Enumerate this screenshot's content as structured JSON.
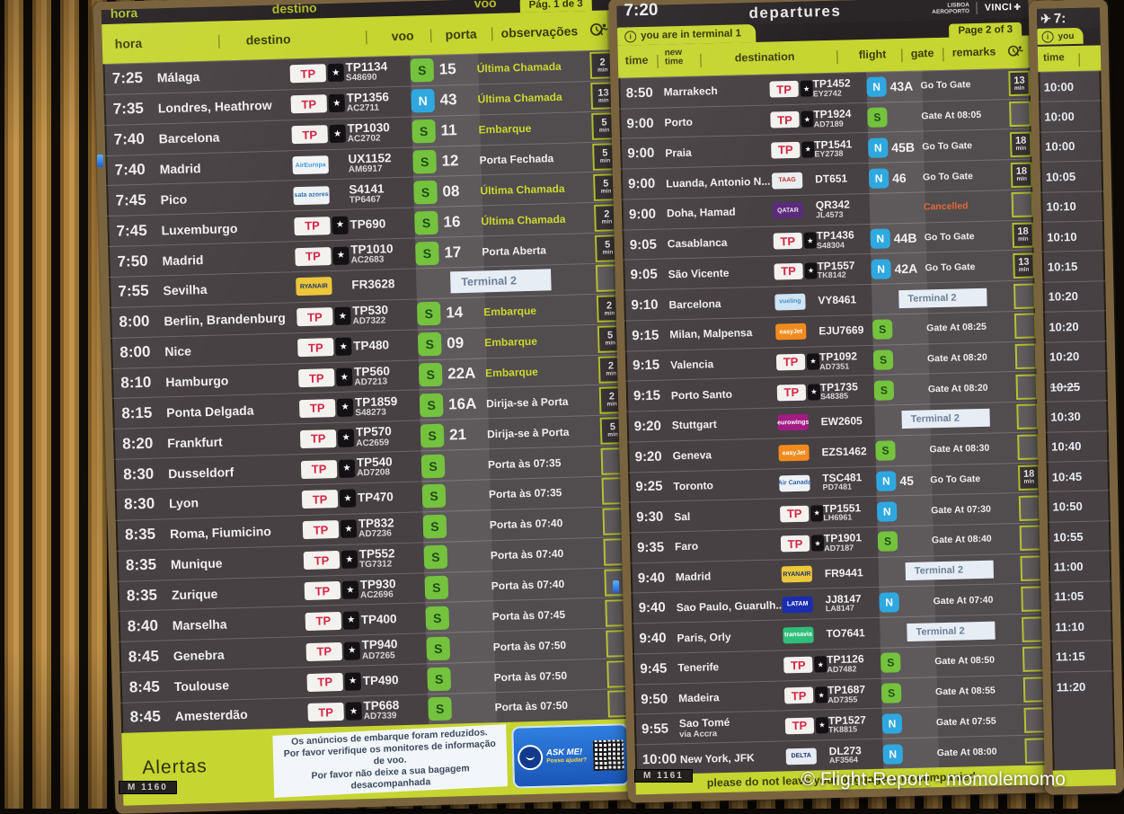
{
  "min_label": "min",
  "watermark": "© Flight-Report - momolemomo",
  "logos": {
    "tap": {
      "text": "TP",
      "bg": "#f4f2ee",
      "fg": "#d42645",
      "star": true,
      "big": true
    },
    "aireuropa": {
      "text": "AirEuropa",
      "bg": "#f2f4f6",
      "fg": "#3a9bd8"
    },
    "sata": {
      "text": "sata azores",
      "bg": "#eef2f5",
      "fg": "#2a6fb0"
    },
    "ryanair": {
      "text": "RYANAIR",
      "bg": "#ecc73a",
      "fg": "#1a2f6e"
    },
    "vueling": {
      "text": "vueling",
      "bg": "#cfe4f4",
      "fg": "#4a90c4"
    },
    "easyjet": {
      "text": "easyJet",
      "bg": "#f28b1e",
      "fg": "#ffffff"
    },
    "eurowings": {
      "text": "eurowings",
      "bg": "#a21c86",
      "fg": "#ffffff"
    },
    "aircanada": {
      "text": "Air Canada",
      "bg": "#eef2f6",
      "fg": "#2a5fa8"
    },
    "latam": {
      "text": "LATAM",
      "bg": "#1a2db0",
      "fg": "#ffffff"
    },
    "transavia": {
      "text": "transavia",
      "bg": "#2fbf7a",
      "fg": "#ffffff"
    },
    "delta": {
      "text": "DELTA",
      "bg": "#e8ecf2",
      "fg": "#1a2f6e"
    },
    "taag": {
      "text": "TAAG",
      "bg": "#e9edf0",
      "fg": "#c03030"
    },
    "qatar": {
      "text": "QATAR",
      "bg": "#5c2a7a",
      "fg": "#e8e2ee"
    }
  },
  "left_board": {
    "top_strip": [
      "hora",
      "destino",
      "voo"
    ],
    "page_tab": "Pág. 1 de 3",
    "columns": [
      "hora",
      "destino",
      "voo",
      "porta",
      "observações"
    ],
    "monitor_label": "M 1160",
    "alert": {
      "label": "Alertas",
      "lines": [
        "Os anúncios de embarque foram reduzidos.",
        "Por favor verifique os monitores de informação de voo.",
        "Por favor não deixe a sua bagagem desacompanhada"
      ]
    },
    "ask_me": {
      "title": "ASK ME!",
      "subtitle": "Posso ajudar?"
    },
    "rows": [
      {
        "time": "7:25",
        "dest": "Málaga",
        "logo": "tap",
        "f1": "TP1134",
        "f2": "S48690",
        "g": "S",
        "gate": "15",
        "remark": "Última Chamada",
        "style": "call",
        "min": "2"
      },
      {
        "time": "7:35",
        "dest": "Londres, Heathrow",
        "logo": "tap",
        "f1": "TP1356",
        "f2": "AC2711",
        "g": "N",
        "gate": "43",
        "remark": "Última Chamada",
        "style": "call",
        "min": "13"
      },
      {
        "time": "7:40",
        "dest": "Barcelona",
        "logo": "tap",
        "f1": "TP1030",
        "f2": "AC2702",
        "g": "S",
        "gate": "11",
        "remark": "Embarque",
        "style": "call",
        "min": "5"
      },
      {
        "time": "7:40",
        "dest": "Madrid",
        "logo": "aireuropa",
        "f1": "UX1152",
        "f2": "AM6917",
        "g": "S",
        "gate": "12",
        "remark": "Porta Fechada",
        "style": "white",
        "min": "5"
      },
      {
        "time": "7:45",
        "dest": "Pico",
        "logo": "sata",
        "f1": "S4141",
        "f2": "TP6467",
        "g": "S",
        "gate": "08",
        "remark": "Última Chamada",
        "style": "call",
        "min": "5"
      },
      {
        "time": "7:45",
        "dest": "Luxemburgo",
        "logo": "tap",
        "f1": "TP690",
        "g": "S",
        "gate": "16",
        "remark": "Última Chamada",
        "style": "call",
        "min": "2"
      },
      {
        "time": "7:50",
        "dest": "Madrid",
        "logo": "tap",
        "f1": "TP1010",
        "f2": "AC2683",
        "g": "S",
        "gate": "17",
        "remark": "Porta Aberta",
        "style": "white",
        "min": "5"
      },
      {
        "time": "7:55",
        "dest": "Sevilha",
        "logo": "ryanair",
        "f1": "FR3628",
        "remark": "Terminal 2",
        "style": "terminal"
      },
      {
        "time": "8:00",
        "dest": "Berlin, Brandenburg",
        "logo": "tap",
        "f1": "TP530",
        "f2": "AD7322",
        "g": "S",
        "gate": "14",
        "remark": "Embarque",
        "style": "call",
        "min": "2"
      },
      {
        "time": "8:00",
        "dest": "Nice",
        "logo": "tap",
        "f1": "TP480",
        "g": "S",
        "gate": "09",
        "remark": "Embarque",
        "style": "call",
        "min": "5"
      },
      {
        "time": "8:10",
        "dest": "Hamburgo",
        "logo": "tap",
        "f1": "TP560",
        "f2": "AD7213",
        "g": "S",
        "gate": "22A",
        "remark": "Embarque",
        "style": "call",
        "min": "2"
      },
      {
        "time": "8:15",
        "dest": "Ponta Delgada",
        "logo": "tap",
        "f1": "TP1859",
        "f2": "S48273",
        "g": "S",
        "gate": "16A",
        "remark": "Dirija-se à Porta",
        "style": "white",
        "min": "2"
      },
      {
        "time": "8:20",
        "dest": "Frankfurt",
        "logo": "tap",
        "f1": "TP570",
        "f2": "AC2659",
        "g": "S",
        "gate": "21",
        "remark": "Dirija-se à Porta",
        "style": "white",
        "min": "5"
      },
      {
        "time": "8:30",
        "dest": "Dusseldorf",
        "logo": "tap",
        "f1": "TP540",
        "f2": "AD7208",
        "g": "S",
        "remark": "Porta às 07:35",
        "style": "white"
      },
      {
        "time": "8:30",
        "dest": "Lyon",
        "logo": "tap",
        "f1": "TP470",
        "g": "S",
        "remark": "Porta às 07:35",
        "style": "white"
      },
      {
        "time": "8:35",
        "dest": "Roma, Fiumicino",
        "logo": "tap",
        "f1": "TP832",
        "f2": "AD7236",
        "g": "S",
        "remark": "Porta às 07:40",
        "style": "white"
      },
      {
        "time": "8:35",
        "dest": "Munique",
        "logo": "tap",
        "f1": "TP552",
        "f2": "TG7312",
        "g": "S",
        "remark": "Porta às 07:40",
        "style": "white"
      },
      {
        "time": "8:35",
        "dest": "Zurique",
        "logo": "tap",
        "f1": "TP930",
        "f2": "AC2696",
        "g": "S",
        "remark": "Porta às 07:40",
        "style": "white"
      },
      {
        "time": "8:40",
        "dest": "Marselha",
        "logo": "tap",
        "f1": "TP400",
        "g": "S",
        "remark": "Porta às 07:45",
        "style": "white"
      },
      {
        "time": "8:45",
        "dest": "Genebra",
        "logo": "tap",
        "f1": "TP940",
        "f2": "AD7265",
        "g": "S",
        "remark": "Porta às 07:50",
        "style": "white"
      },
      {
        "time": "8:45",
        "dest": "Toulouse",
        "logo": "tap",
        "f1": "TP490",
        "g": "S",
        "remark": "Porta às 07:50",
        "style": "white"
      },
      {
        "time": "8:45",
        "dest": "Amesterdão",
        "logo": "tap",
        "f1": "TP668",
        "f2": "AD7339",
        "g": "S",
        "remark": "Porta às 07:50",
        "style": "white"
      }
    ]
  },
  "right_board": {
    "time": "7:20",
    "title": "departures",
    "airport": [
      "LISBOA",
      "AEROPORTO"
    ],
    "vinci": "VINCI",
    "terminal_tab": "you are in terminal 1",
    "page_tab": "Page 2 of 3",
    "columns": [
      "time",
      "new time",
      "destination",
      "flight",
      "gate",
      "remarks"
    ],
    "banner": "please do not leave your baggage unaccompanied",
    "monitor_label": "M 1161",
    "rows": [
      {
        "time": "8:50",
        "dest": "Marrakech",
        "logo": "tap",
        "f1": "TP1452",
        "f2": "EY2742",
        "g": "N",
        "gate": "43A",
        "remark": "Go To Gate",
        "style": "white",
        "min": "13"
      },
      {
        "time": "9:00",
        "dest": "Porto",
        "logo": "tap",
        "f1": "TP1924",
        "f2": "AD7189",
        "g": "S",
        "remark": "Gate At 08:05",
        "style": "white"
      },
      {
        "time": "9:00",
        "dest": "Praia",
        "logo": "tap",
        "f1": "TP1541",
        "f2": "EY2738",
        "g": "N",
        "gate": "45B",
        "remark": "Go To Gate",
        "style": "white",
        "min": "18"
      },
      {
        "time": "9:00",
        "dest": "Luanda, Antonio N...",
        "logo": "taag",
        "f1": "DT651",
        "g": "N",
        "gate": "46",
        "remark": "Go To Gate",
        "style": "white",
        "min": "18"
      },
      {
        "time": "9:00",
        "dest": "Doha, Hamad",
        "logo": "qatar",
        "f1": "QR342",
        "f2": "JL4573",
        "remark": "Cancelled",
        "style": "cancelled"
      },
      {
        "time": "9:05",
        "dest": "Casablanca",
        "logo": "tap",
        "f1": "TP1436",
        "f2": "S48304",
        "g": "N",
        "gate": "44B",
        "remark": "Go To Gate",
        "style": "white",
        "min": "18"
      },
      {
        "time": "9:05",
        "dest": "São Vicente",
        "logo": "tap",
        "f1": "TP1557",
        "f2": "TK8142",
        "g": "N",
        "gate": "42A",
        "remark": "Go To Gate",
        "style": "white",
        "min": "13"
      },
      {
        "time": "9:10",
        "dest": "Barcelona",
        "logo": "vueling",
        "f1": "VY8461",
        "remark": "Terminal 2",
        "style": "terminal"
      },
      {
        "time": "9:15",
        "dest": "Milan, Malpensa",
        "logo": "easyjet",
        "f1": "EJU7669",
        "g": "S",
        "remark": "Gate At 08:25",
        "style": "white"
      },
      {
        "time": "9:15",
        "dest": "Valencia",
        "logo": "tap",
        "f1": "TP1092",
        "f2": "AD7351",
        "g": "S",
        "remark": "Gate At 08:20",
        "style": "white"
      },
      {
        "time": "9:15",
        "dest": "Porto Santo",
        "logo": "tap",
        "f1": "TP1735",
        "f2": "S48385",
        "g": "S",
        "remark": "Gate At 08:20",
        "style": "white"
      },
      {
        "time": "9:20",
        "dest": "Stuttgart",
        "logo": "eurowings",
        "f1": "EW2605",
        "remark": "Terminal 2",
        "style": "terminal"
      },
      {
        "time": "9:20",
        "dest": "Geneva",
        "logo": "easyjet",
        "f1": "EZS1462",
        "g": "S",
        "remark": "Gate At 08:30",
        "style": "white"
      },
      {
        "time": "9:25",
        "dest": "Toronto",
        "logo": "aircanada",
        "f1": "TSC481",
        "f2": "PD7481",
        "g": "N",
        "gate": "45",
        "remark": "Go To Gate",
        "style": "white",
        "min": "18"
      },
      {
        "time": "9:30",
        "dest": "Sal",
        "logo": "tap",
        "f1": "TP1551",
        "f2": "LH6961",
        "g": "N",
        "remark": "Gate At 07:30",
        "style": "white"
      },
      {
        "time": "9:35",
        "dest": "Faro",
        "logo": "tap",
        "f1": "TP1901",
        "f2": "AD7187",
        "g": "S",
        "remark": "Gate At 08:40",
        "style": "white"
      },
      {
        "time": "9:40",
        "dest": "Madrid",
        "logo": "ryanair",
        "f1": "FR9441",
        "remark": "Terminal 2",
        "style": "terminal"
      },
      {
        "time": "9:40",
        "dest": "Sao Paulo, Guarulh...",
        "logo": "latam",
        "f1": "JJ8147",
        "f2": "LA8147",
        "g": "N",
        "remark": "Gate At 07:40",
        "style": "white"
      },
      {
        "time": "9:40",
        "dest": "Paris, Orly",
        "logo": "transavia",
        "f1": "TO7641",
        "remark": "Terminal 2",
        "style": "terminal"
      },
      {
        "time": "9:45",
        "dest": "Tenerife",
        "logo": "tap",
        "f1": "TP1126",
        "f2": "AD7482",
        "g": "S",
        "remark": "Gate At 08:50",
        "style": "white"
      },
      {
        "time": "9:50",
        "dest": "Madeira",
        "logo": "tap",
        "f1": "TP1687",
        "f2": "AD7355",
        "g": "S",
        "remark": "Gate At 08:55",
        "style": "white"
      },
      {
        "time": "9:55",
        "dest": "Sao Tomé",
        "sub": "via Accra",
        "logo": "tap",
        "f1": "TP1527",
        "f2": "TK8815",
        "g": "N",
        "remark": "Gate At 07:55",
        "style": "white"
      },
      {
        "time": "10:00",
        "dest": "New York, JFK",
        "logo": "delta",
        "f1": "DL273",
        "f2": "AF3564",
        "g": "N",
        "remark": "Gate At 08:00",
        "style": "white"
      }
    ]
  },
  "third_board": {
    "time_prefix": "7:",
    "tab": "you",
    "column": "time",
    "struck_index": 10,
    "times": [
      "10:00",
      "10:00",
      "10:00",
      "10:05",
      "10:10",
      "10:10",
      "10:15",
      "10:20",
      "10:20",
      "10:20",
      "10:25",
      "10:30",
      "10:40",
      "10:45",
      "10:50",
      "10:55",
      "11:00",
      "11:05",
      "11:10",
      "11:15",
      "11:20"
    ]
  }
}
